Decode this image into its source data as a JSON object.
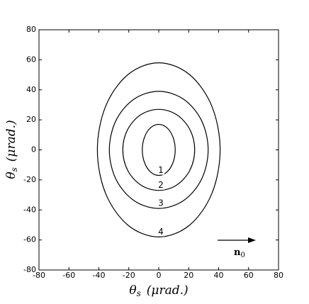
{
  "chart_data": {
    "type": "contour",
    "x_label": {
      "symbol": "θ",
      "subscript": "s",
      "unit": "(μrad.)"
    },
    "y_label": {
      "symbol": "θ",
      "subscript": "s",
      "unit": "(μrad.)"
    },
    "xlim": [
      -80,
      80
    ],
    "ylim": [
      -80,
      80
    ],
    "xticks": [
      -80,
      -60,
      -40,
      -20,
      0,
      20,
      40,
      60,
      80
    ],
    "yticks": [
      -80,
      -60,
      -40,
      -20,
      0,
      20,
      40,
      60,
      80
    ],
    "color": "#000000",
    "contours": [
      {
        "label": "1",
        "x": [
          11,
          9.5,
          5.5,
          0,
          -5.5,
          -9.5,
          -11,
          -9.5,
          -5.5,
          0,
          5.5,
          9.5
        ],
        "y": [
          0,
          8.5,
          14.7,
          17,
          14.7,
          8.5,
          0,
          -8.5,
          -14.7,
          -17,
          -14.7,
          -8.5
        ]
      },
      {
        "label": "2",
        "x": [
          24,
          20.8,
          12,
          0,
          -12,
          -20.8,
          -24,
          -20.8,
          -12,
          0,
          12,
          20.8
        ],
        "y": [
          0,
          13.5,
          23.4,
          27,
          23.4,
          13.5,
          0,
          -13.5,
          -23.4,
          -27,
          -23.4,
          -13.5
        ]
      },
      {
        "label": "3",
        "x": [
          33,
          28.6,
          16.5,
          0,
          -16.5,
          -28.6,
          -33,
          -28.6,
          -16.5,
          0,
          16.5,
          28.6
        ],
        "y": [
          0,
          19.5,
          33.8,
          39,
          33.8,
          19.5,
          0,
          -19.5,
          -33.8,
          -39,
          -33.8,
          -19.5
        ]
      },
      {
        "label": "4",
        "x": [
          41,
          35.5,
          20.5,
          0,
          -20.5,
          -35.5,
          -41,
          -35.5,
          -20.5,
          0,
          20.5,
          35.5
        ],
        "y": [
          0,
          29,
          50.2,
          58,
          50.2,
          29,
          0,
          -29,
          -50.2,
          -58,
          -50.2,
          -29
        ]
      }
    ],
    "annotation": {
      "symbol": "n",
      "subscript": "0"
    }
  }
}
